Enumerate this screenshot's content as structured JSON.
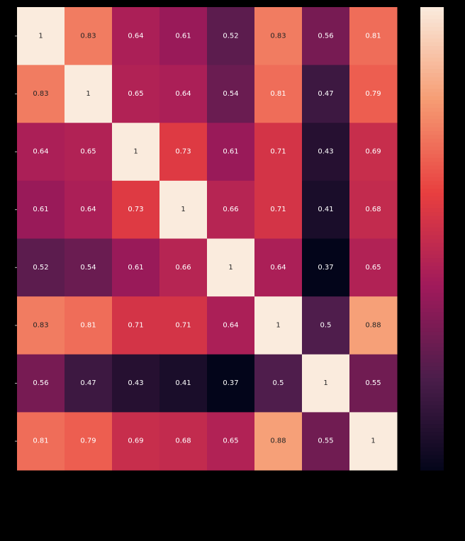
{
  "chart_data": {
    "type": "heatmap",
    "title": "",
    "xlabel": "",
    "ylabel": "",
    "rows": 8,
    "cols": 8,
    "values": [
      [
        1,
        0.83,
        0.64,
        0.61,
        0.52,
        0.83,
        0.56,
        0.81
      ],
      [
        0.83,
        1,
        0.65,
        0.64,
        0.54,
        0.81,
        0.47,
        0.79
      ],
      [
        0.64,
        0.65,
        1,
        0.73,
        0.61,
        0.71,
        0.43,
        0.69
      ],
      [
        0.61,
        0.64,
        0.73,
        1,
        0.66,
        0.71,
        0.41,
        0.68
      ],
      [
        0.52,
        0.54,
        0.61,
        0.66,
        1,
        0.64,
        0.37,
        0.65
      ],
      [
        0.83,
        0.81,
        0.71,
        0.71,
        0.64,
        1,
        0.5,
        0.88
      ],
      [
        0.56,
        0.47,
        0.43,
        0.41,
        0.37,
        0.5,
        1,
        0.55
      ],
      [
        0.81,
        0.79,
        0.69,
        0.68,
        0.65,
        0.88,
        0.55,
        1
      ]
    ],
    "labels": [
      [
        "1",
        "0.83",
        "0.64",
        "0.61",
        "0.52",
        "0.83",
        "0.56",
        "0.81"
      ],
      [
        "0.83",
        "1",
        "0.65",
        "0.64",
        "0.54",
        "0.81",
        "0.47",
        "0.79"
      ],
      [
        "0.64",
        "0.65",
        "1",
        "0.73",
        "0.61",
        "0.71",
        "0.43",
        "0.69"
      ],
      [
        "0.61",
        "0.64",
        "0.73",
        "1",
        "0.66",
        "0.71",
        "0.41",
        "0.68"
      ],
      [
        "0.52",
        "0.54",
        "0.61",
        "0.66",
        "1",
        "0.64",
        "0.37",
        "0.65"
      ],
      [
        "0.83",
        "0.81",
        "0.71",
        "0.71",
        "0.64",
        "1",
        "0.5",
        "0.88"
      ],
      [
        "0.56",
        "0.47",
        "0.43",
        "0.41",
        "0.37",
        "0.5",
        "1",
        "0.55"
      ],
      [
        "0.81",
        "0.79",
        "0.69",
        "0.68",
        "0.65",
        "0.88",
        "0.55",
        "1"
      ]
    ],
    "vmin": 0.37,
    "vmax": 1,
    "colormap": "rocket",
    "colormap_stops": [
      "#03051a",
      "#4c1d4b",
      "#a11a5b",
      "#e83f3f",
      "#f69c73",
      "#faebdd"
    ],
    "background": "#000000",
    "colorbar": true
  }
}
